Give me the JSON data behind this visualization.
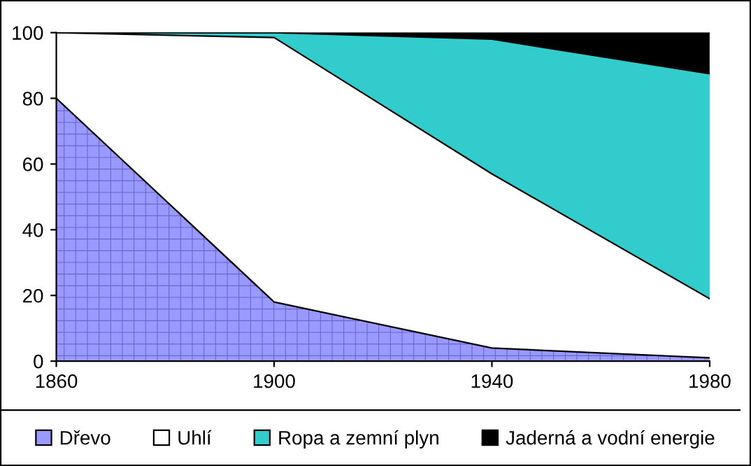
{
  "chart_data": {
    "type": "area",
    "stacked": true,
    "x": [
      1860,
      1900,
      1940,
      1980
    ],
    "series": [
      {
        "name": "Dřevo",
        "color": "#9999ff",
        "values": [
          80,
          18,
          4,
          1
        ]
      },
      {
        "name": "Uhlí",
        "color": "#ffffff",
        "values": [
          20,
          80.5,
          53,
          18
        ]
      },
      {
        "name": "Ropa a zemní plyn",
        "color": "#33cccc",
        "values": [
          0,
          1.5,
          41,
          68.5
        ]
      },
      {
        "name": "Jaderná a vodní energie",
        "color": "#000000",
        "values": [
          0,
          0,
          2,
          12.5
        ]
      }
    ],
    "xlim": [
      1860,
      1980
    ],
    "xticks": [
      1860,
      1900,
      1940,
      1980
    ],
    "ylim": [
      0,
      100
    ],
    "yticks": [
      0,
      20,
      40,
      60,
      80,
      100
    ],
    "grid": false,
    "legend": "bottom"
  }
}
